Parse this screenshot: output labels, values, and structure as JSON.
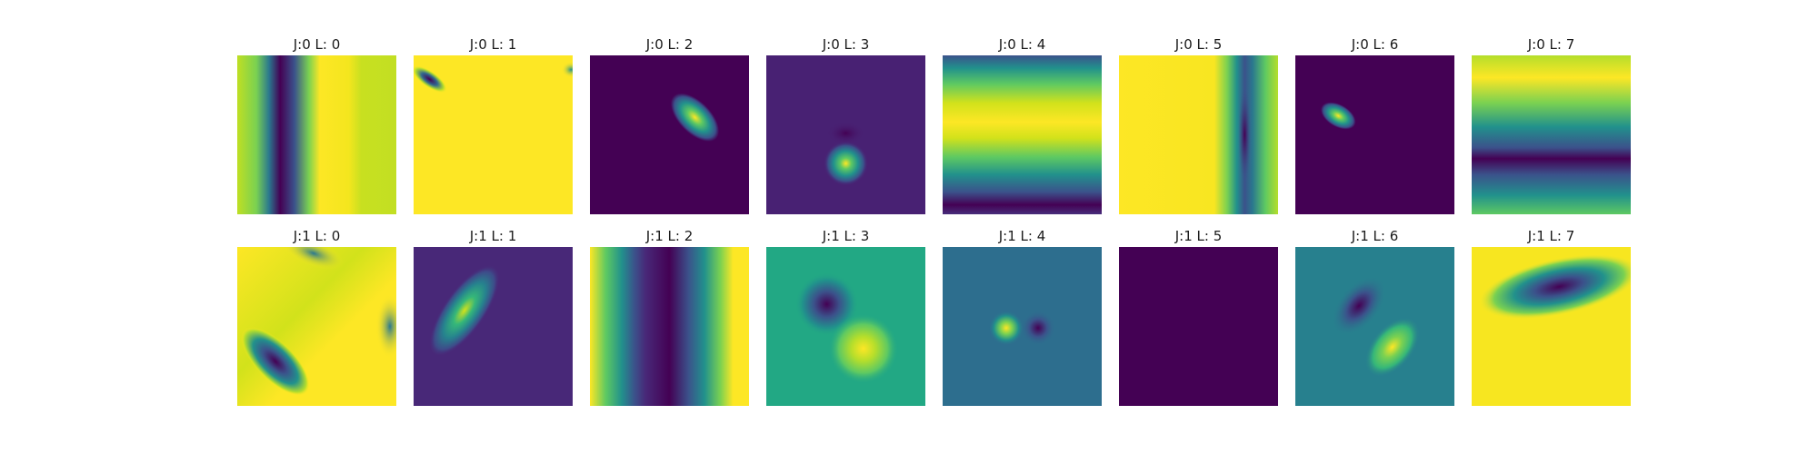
{
  "figure": {
    "rows": [
      {
        "panels": [
          {
            "title": "J:0 L: 0",
            "image": "vertical-stripes"
          },
          {
            "title": "J:0 L: 1",
            "image": "yellow-field-dark-corner-blob"
          },
          {
            "title": "J:0 L: 2",
            "image": "tilted-yellow-blob"
          },
          {
            "title": "J:0 L: 3",
            "image": "small-bright-dot"
          },
          {
            "title": "J:0 L: 4",
            "image": "horizontal-stripes"
          },
          {
            "title": "J:0 L: 5",
            "image": "yellow-field-dark-vertical-band"
          },
          {
            "title": "J:0 L: 6",
            "image": "small-tilted-blob"
          },
          {
            "title": "J:0 L: 7",
            "image": "wide-horizontal-bands"
          }
        ]
      },
      {
        "panels": [
          {
            "title": "J:1 L: 0",
            "image": "yellow-field-dark-diagonal-blob"
          },
          {
            "title": "J:1 L: 1",
            "image": "elongated-tilted-blob"
          },
          {
            "title": "J:1 L: 2",
            "image": "vertical-stripes-wide"
          },
          {
            "title": "J:1 L: 3",
            "image": "dark-and-bright-dipole"
          },
          {
            "title": "J:1 L: 4",
            "image": "small-dipole"
          },
          {
            "title": "J:1 L: 5",
            "image": "uniform-dark"
          },
          {
            "title": "J:1 L: 6",
            "image": "tilted-dipole"
          },
          {
            "title": "J:1 L: 7",
            "image": "yellow-field-dark-ellipse"
          }
        ]
      }
    ],
    "colormap": {
      "dark": "#440154",
      "purple": "#482878",
      "blue": "#3e4a89",
      "teal": "#26828e",
      "green": "#35b779",
      "yellow-green": "#c2df23",
      "yellow": "#fde725"
    }
  }
}
